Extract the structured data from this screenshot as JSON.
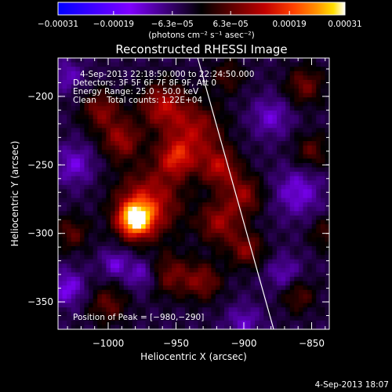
{
  "chart_data": {
    "type": "heatmap",
    "title": "Reconstructed RHESSI Image",
    "xlabel": "Heliocentric X (arcsec)",
    "ylabel": "Heliocentric Y (arcsec)",
    "xlim": [
      -1037,
      -837
    ],
    "ylim": [
      -370,
      -172
    ],
    "x_ticks": [
      -1000,
      -950,
      -900,
      -850
    ],
    "x_tick_labels": [
      "−1000",
      "−950",
      "−900",
      "−850"
    ],
    "y_ticks": [
      -200,
      -250,
      -300,
      -350
    ],
    "y_tick_labels": [
      "−200",
      "−250",
      "−300",
      "−350"
    ],
    "colorbar": {
      "range": [
        -0.00031,
        0.00031
      ],
      "ticks": [
        -0.00031,
        -0.00019,
        -6.3e-05,
        6.3e-05,
        0.00019,
        0.00031
      ],
      "tick_labels": [
        "−0.00031",
        "−0.00019",
        "−6.3e−05",
        "6.3e−05",
        "0.00019",
        "0.00031"
      ],
      "unit_label": "(photons cm⁻² s⁻¹ asec⁻²)",
      "colors": [
        "#0000ff",
        "#7f00ff",
        "#000000",
        "#5a0000",
        "#c00000",
        "#ff4000",
        "#ff9000",
        "#ffe000",
        "#ffffff"
      ]
    },
    "annotations": [
      "4-Sep-2013 22:18:50.000 to 22:24:50.000",
      "Detectors: 3F 5F 6F 7F 8F 9F, Att 0",
      "Energy Range: 25.0 - 50.0 keV",
      "Clean    Total counts: 1.22E+04"
    ],
    "peak_label": "Position of Peak = [−980,−290]",
    "peak": {
      "x": -980,
      "y": -290
    },
    "sources": [
      {
        "x": -980,
        "y": -290,
        "sigma": 9,
        "amp": 1.0
      },
      {
        "x": -970,
        "y": -277,
        "sigma": 17,
        "amp": 0.55
      },
      {
        "x": -950,
        "y": -245,
        "sigma": 10,
        "amp": 0.55
      },
      {
        "x": -990,
        "y": -232,
        "sigma": 10,
        "amp": 0.45
      },
      {
        "x": -960,
        "y": -207,
        "sigma": 12,
        "amp": 0.5
      },
      {
        "x": -1005,
        "y": -210,
        "sigma": 10,
        "amp": 0.4
      },
      {
        "x": -935,
        "y": -225,
        "sigma": 14,
        "amp": 0.45
      },
      {
        "x": -918,
        "y": -252,
        "sigma": 10,
        "amp": 0.5
      },
      {
        "x": -900,
        "y": -272,
        "sigma": 10,
        "amp": 0.42
      },
      {
        "x": -918,
        "y": -292,
        "sigma": 11,
        "amp": 0.45
      },
      {
        "x": -898,
        "y": -312,
        "sigma": 9,
        "amp": 0.4
      },
      {
        "x": -930,
        "y": -335,
        "sigma": 10,
        "amp": 0.38
      },
      {
        "x": -955,
        "y": -330,
        "sigma": 11,
        "amp": 0.35
      },
      {
        "x": -1000,
        "y": -352,
        "sigma": 10,
        "amp": 0.32
      },
      {
        "x": -1027,
        "y": -300,
        "sigma": 9,
        "amp": 0.3
      },
      {
        "x": -855,
        "y": -192,
        "sigma": 10,
        "amp": 0.35
      },
      {
        "x": -850,
        "y": -240,
        "sigma": 9,
        "amp": 0.3
      },
      {
        "x": -860,
        "y": -345,
        "sigma": 9,
        "amp": 0.3
      },
      {
        "x": -840,
        "y": -300,
        "sigma": 8,
        "amp": 0.25
      },
      {
        "x": -912,
        "y": -185,
        "sigma": 9,
        "amp": 0.25
      },
      {
        "x": -1030,
        "y": -340,
        "sigma": 9,
        "amp": -0.35
      },
      {
        "x": -1025,
        "y": -250,
        "sigma": 10,
        "amp": -0.3
      },
      {
        "x": -975,
        "y": -330,
        "sigma": 8,
        "amp": -0.3
      },
      {
        "x": -995,
        "y": -322,
        "sigma": 7,
        "amp": -0.3
      },
      {
        "x": -860,
        "y": -270,
        "sigma": 12,
        "amp": -0.32
      },
      {
        "x": -880,
        "y": -215,
        "sigma": 10,
        "amp": -0.28
      },
      {
        "x": -870,
        "y": -330,
        "sigma": 9,
        "amp": -0.25
      },
      {
        "x": -1030,
        "y": -185,
        "sigma": 8,
        "amp": -0.25
      },
      {
        "x": -900,
        "y": -365,
        "sigma": 9,
        "amp": -0.25
      }
    ],
    "limb_line": [
      {
        "x": -934,
        "y": -172
      },
      {
        "x": -878,
        "y": -370
      }
    ],
    "grid": false
  },
  "footer_timestamp": "4-Sep-2013 18:07"
}
